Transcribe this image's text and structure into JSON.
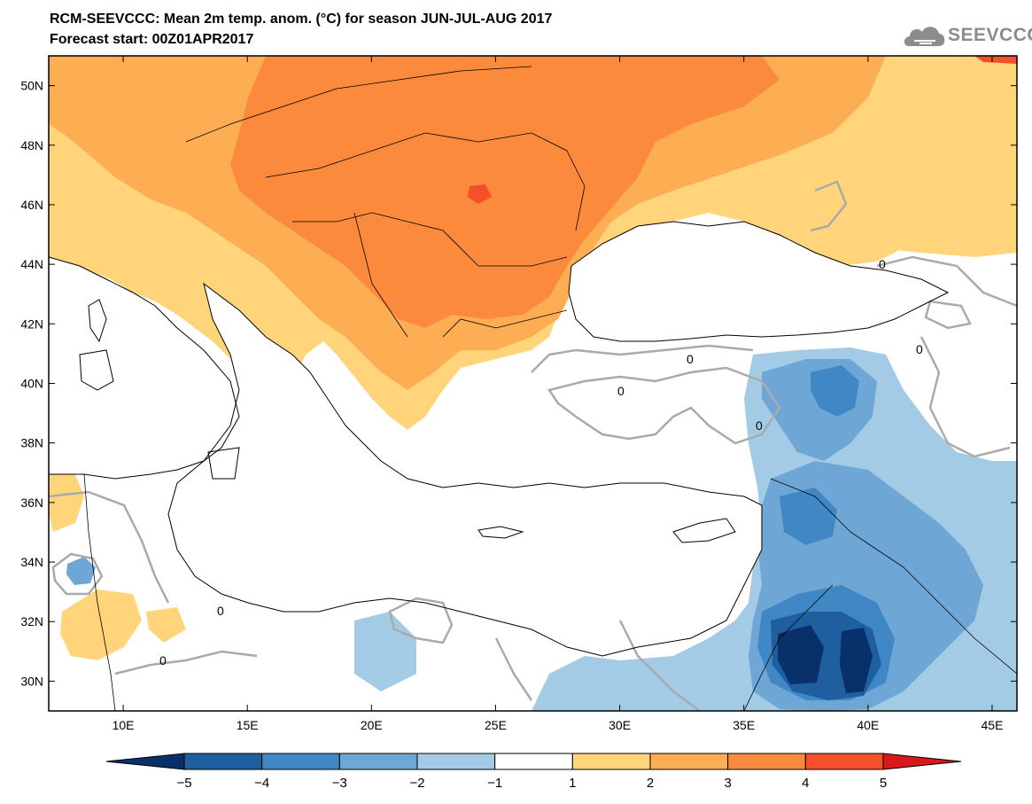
{
  "title": "RCM-SEEVCCC: Mean 2m temp. anom. (°C) for season JUN-JUL-AUG 2017",
  "subtitle": "Forecast start: 00Z01APR2017",
  "logo_text": "SEEVCCC",
  "map": {
    "lon_range": [
      7,
      46
    ],
    "lat_range": [
      29,
      51
    ],
    "lon_ticks": [
      "10E",
      "15E",
      "20E",
      "25E",
      "30E",
      "35E",
      "40E",
      "45E"
    ],
    "lat_ticks": [
      "50N",
      "48N",
      "46N",
      "44N",
      "42N",
      "40N",
      "38N",
      "36N",
      "34N",
      "32N",
      "30N"
    ],
    "contour_label": "0"
  },
  "colorbar": {
    "labels": [
      "−5",
      "−4",
      "−3",
      "−2",
      "−1",
      "1",
      "2",
      "3",
      "4",
      "5"
    ],
    "colors": [
      "#08306b",
      "#1f5fa0",
      "#3f88c5",
      "#6ea7d6",
      "#a3cbe6",
      "#ffffff",
      "#ffd47a",
      "#fdae52",
      "#fb8a3c",
      "#f5502a",
      "#d7191c"
    ]
  },
  "colors": {
    "warm_1": "#ffd47a",
    "warm_2": "#fdae52",
    "warm_3": "#fb8a3c",
    "warm_4": "#f5502a",
    "cool_1": "#a3cbe6",
    "cool_2": "#6ea7d6",
    "cool_3": "#3f88c5",
    "cool_4": "#1f5fa0",
    "cool_5": "#08306b",
    "contour": "#aaaaaa"
  }
}
